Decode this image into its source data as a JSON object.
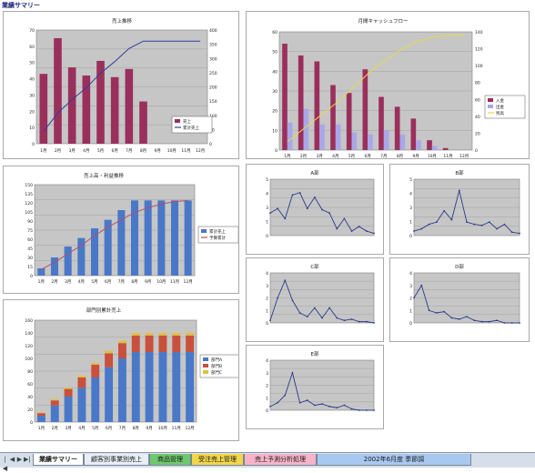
{
  "sheet_title": "業績サマリー",
  "tabs": [
    {
      "label": "業績サマリー",
      "color": "#ffffff"
    },
    {
      "label": "顧客別事業別売上",
      "color": "#e8eef7"
    },
    {
      "label": "商品管理",
      "color": "#6ec86e"
    },
    {
      "label": "受注売上管理",
      "color": "#f2d64a"
    },
    {
      "label": "売上予測分析処理",
      "color": "#f6b4c8"
    },
    {
      "label": "2002年6月度 季節調",
      "color": "#a9c8f0"
    }
  ],
  "nav": {
    "first": "|◀",
    "prev": "◀",
    "next": "▶",
    "last": "▶|"
  },
  "chart_data": [
    {
      "id": "sales-pareto",
      "type": "bar",
      "title": "売上推移",
      "categories": [
        "1月",
        "2月",
        "3月",
        "4月",
        "5月",
        "6月",
        "7月",
        "8月",
        "9月",
        "10月",
        "11月",
        "12月"
      ],
      "series": [
        {
          "name": "売上",
          "type": "bar",
          "values": [
            43,
            65,
            47,
            42,
            51,
            41,
            46,
            26,
            0,
            0,
            0,
            0
          ]
        },
        {
          "name": "累計売上",
          "type": "line",
          "values": [
            43,
            108,
            155,
            197,
            248,
            289,
            335,
            361,
            361,
            361,
            361,
            361
          ]
        }
      ],
      "ylim": [
        0,
        70
      ],
      "y2lim": [
        0,
        400
      ],
      "colors": {
        "bar": "#9b2f5c",
        "line": "#2f3f9a"
      },
      "legend": "bottom-right"
    },
    {
      "id": "cashflow",
      "type": "bar",
      "title": "月間キャッシュフロー",
      "categories": [
        "1月",
        "2月",
        "3月",
        "4月",
        "5月",
        "6月",
        "7月",
        "8月",
        "9月",
        "10月",
        "11月",
        "12月"
      ],
      "series": [
        {
          "name": "入金",
          "type": "bar",
          "values": [
            54,
            48,
            45,
            33,
            29,
            41,
            27,
            22,
            16,
            5,
            1,
            0
          ]
        },
        {
          "name": "出金",
          "type": "bar",
          "values": [
            14,
            21,
            13,
            13,
            9,
            8,
            10,
            8,
            5,
            2,
            0,
            0
          ]
        },
        {
          "name": "残高",
          "type": "line",
          "values": [
            10,
            25,
            40,
            55,
            72,
            90,
            105,
            118,
            128,
            134,
            136,
            136
          ]
        }
      ],
      "ylim": [
        0,
        60
      ],
      "y2lim": [
        0,
        140
      ],
      "colors": {
        "bar1": "#9b2f5c",
        "bar2": "#a9a7e8",
        "line": "#e8d84a"
      },
      "legend": "right"
    },
    {
      "id": "cumulative",
      "type": "bar",
      "title": "売上高・利益推移",
      "categories": [
        "1月",
        "2月",
        "3月",
        "4月",
        "5月",
        "6月",
        "7月",
        "8月",
        "9月",
        "10月",
        "11月",
        "12月"
      ],
      "series": [
        {
          "name": "累計売上",
          "type": "bar",
          "values": [
            12,
            30,
            48,
            62,
            78,
            92,
            108,
            124,
            124,
            124,
            124,
            124
          ]
        },
        {
          "name": "予算累計",
          "type": "line",
          "values": [
            10,
            22,
            36,
            50,
            66,
            80,
            92,
            104,
            112,
            118,
            122,
            124
          ]
        }
      ],
      "ylim": [
        0,
        150
      ],
      "colors": {
        "bar": "#4a78c8",
        "line": "#b0506a"
      },
      "legend": "right"
    },
    {
      "id": "stacked",
      "type": "bar",
      "title": "部門別累計売上",
      "categories": [
        "1月",
        "2月",
        "3月",
        "4月",
        "5月",
        "6月",
        "7月",
        "8月",
        "9月",
        "10月",
        "11月",
        "12月"
      ],
      "series": [
        {
          "name": "部門A",
          "type": "bar",
          "values": [
            10,
            26,
            40,
            54,
            70,
            86,
            100,
            110,
            110,
            110,
            110,
            110
          ]
        },
        {
          "name": "部門B",
          "type": "bar",
          "values": [
            4,
            8,
            12,
            16,
            20,
            22,
            24,
            26,
            26,
            26,
            26,
            26
          ]
        },
        {
          "name": "部門C",
          "type": "bar",
          "values": [
            1,
            2,
            2,
            3,
            3,
            4,
            4,
            4,
            4,
            4,
            4,
            4
          ]
        }
      ],
      "ylim": [
        0,
        160
      ],
      "colors": {
        "A": "#4a78c8",
        "B": "#c8503c",
        "C": "#e0c040"
      },
      "legend": "right"
    },
    {
      "id": "dept1",
      "type": "line",
      "title": "A部",
      "values": [
        2.0,
        2.4,
        1.5,
        3.6,
        3.8,
        2.4,
        3.4,
        2.3,
        2.0,
        0.6,
        1.5,
        0.4,
        0.8,
        0.4,
        0.2
      ],
      "ylim": [
        0,
        5
      ],
      "color": "#2a3a8a"
    },
    {
      "id": "dept2",
      "type": "line",
      "title": "B部",
      "values": [
        0.4,
        0.6,
        1.0,
        1.2,
        2.2,
        1.4,
        4.0,
        1.2,
        1.0,
        0.9,
        1.2,
        0.6,
        1.0,
        0.3,
        0.2
      ],
      "ylim": [
        0,
        5
      ],
      "color": "#2a3a8a"
    },
    {
      "id": "dept3",
      "type": "line",
      "title": "C部",
      "values": [
        0.2,
        2.0,
        3.4,
        1.8,
        0.8,
        0.5,
        1.2,
        0.4,
        1.2,
        0.4,
        0.2,
        0.3,
        0.1,
        0.1,
        0.0
      ],
      "ylim": [
        0,
        4
      ],
      "color": "#2a3a8a"
    },
    {
      "id": "dept4",
      "type": "line",
      "title": "D部",
      "values": [
        2.0,
        3.0,
        1.0,
        0.8,
        0.9,
        0.4,
        0.3,
        0.5,
        0.2,
        0.1,
        0.1,
        0.2,
        0.0,
        0.0,
        0.0
      ],
      "ylim": [
        0,
        4
      ],
      "color": "#2a3a8a"
    },
    {
      "id": "dept5",
      "type": "line",
      "title": "E部",
      "values": [
        0.3,
        0.6,
        1.2,
        3.0,
        0.6,
        0.8,
        0.4,
        0.5,
        0.3,
        0.2,
        0.4,
        0.1,
        0.0,
        0.0,
        0.0
      ],
      "ylim": [
        0,
        4
      ],
      "color": "#2a3a8a"
    }
  ]
}
